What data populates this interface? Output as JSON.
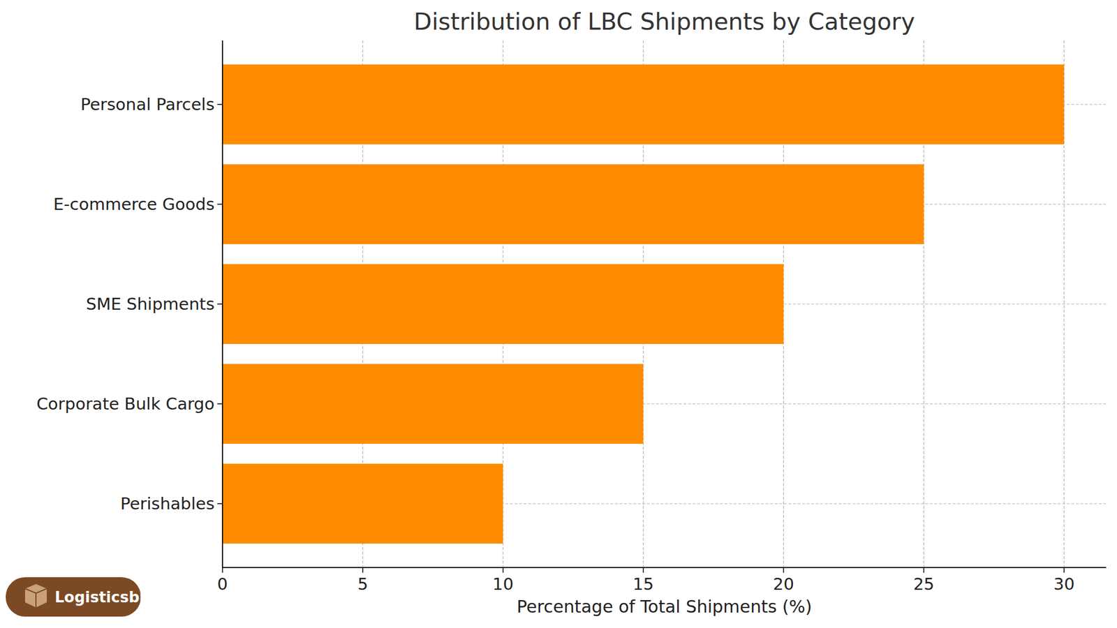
{
  "chart_data": {
    "type": "bar",
    "title": "Distribution of LBC Shipments by Category",
    "x_label": "Percentage of Total Shipments (%)",
    "categories": [
      "Personal Parcels",
      "E-commerce Goods",
      "SME Shipments",
      "Corporate Bulk Cargo",
      "Perishables"
    ],
    "values": [
      30,
      25,
      20,
      15,
      10
    ],
    "color": "#ff8c00",
    "orientation": "horizontal",
    "xlim": [
      0,
      31.5
    ],
    "xticks": [
      0,
      5,
      10,
      15,
      20,
      25,
      30
    ],
    "grid": true,
    "watermark": "Logisticsbid"
  }
}
